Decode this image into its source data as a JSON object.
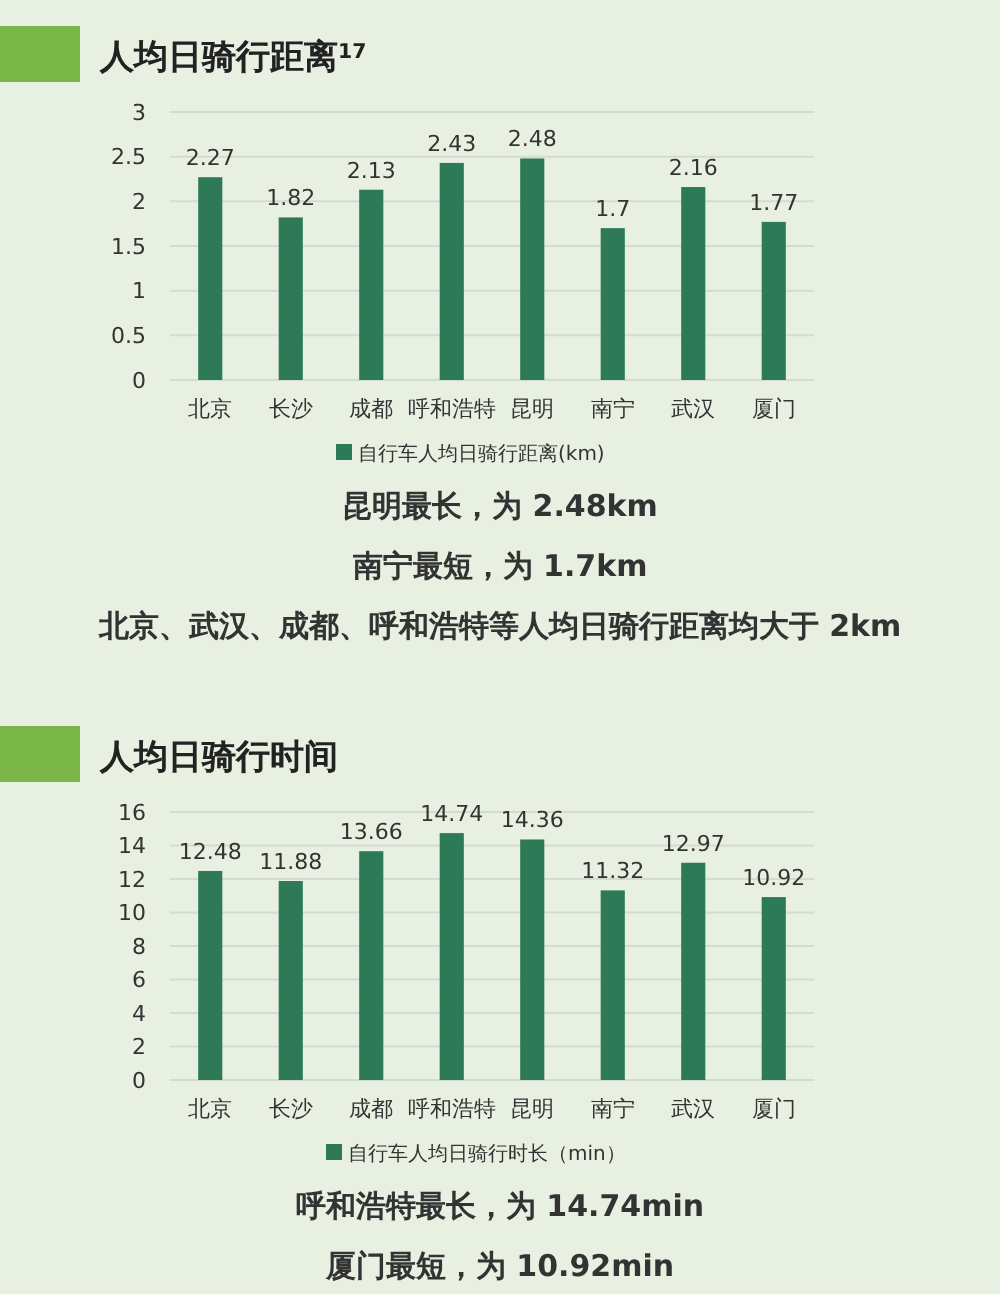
{
  "chart_data": [
    {
      "type": "bar",
      "title": "人均日骑行距离$^{17}$",
      "categories": [
        "北京",
        "长沙",
        "成都",
        "呼和浩特",
        "昆明",
        "南宁",
        "武汉",
        "厦门"
      ],
      "series": [
        {
          "name": "自行车人均日骑行距离(km)",
          "color": "#2e7a58",
          "values": [
            2.27,
            1.82,
            2.13,
            2.43,
            2.48,
            1.7,
            2.16,
            1.77
          ]
        }
      ],
      "ylim": [
        0,
        3
      ],
      "yticks": [
        0,
        0.5,
        1,
        1.5,
        2,
        2.5,
        3
      ],
      "grid": "y",
      "legend": "bottom",
      "data_labels": true,
      "annotations": [
        "昆明最长，为 2.48km",
        "南宁最短，为 1.7km",
        "北京、武汉、成都、呼和浩特等人均日骑行距离均大于 2km"
      ]
    },
    {
      "type": "bar",
      "title": "人均日骑行时间",
      "categories": [
        "北京",
        "长沙",
        "成都",
        "呼和浩特",
        "昆明",
        "南宁",
        "武汉",
        "厦门"
      ],
      "series": [
        {
          "name": "自行车人均日骑行时长（min）",
          "color": "#2e7a58",
          "values": [
            12.48,
            11.88,
            13.66,
            14.74,
            14.36,
            11.32,
            12.97,
            10.92
          ]
        }
      ],
      "ylim": [
        0,
        16
      ],
      "yticks": [
        0,
        2,
        4,
        6,
        8,
        10,
        12,
        14,
        16
      ],
      "grid": "y",
      "legend": "bottom",
      "data_labels": true,
      "annotations": [
        "呼和浩特最长，为 14.74min",
        "厦门最短，为 10.92min"
      ]
    }
  ]
}
